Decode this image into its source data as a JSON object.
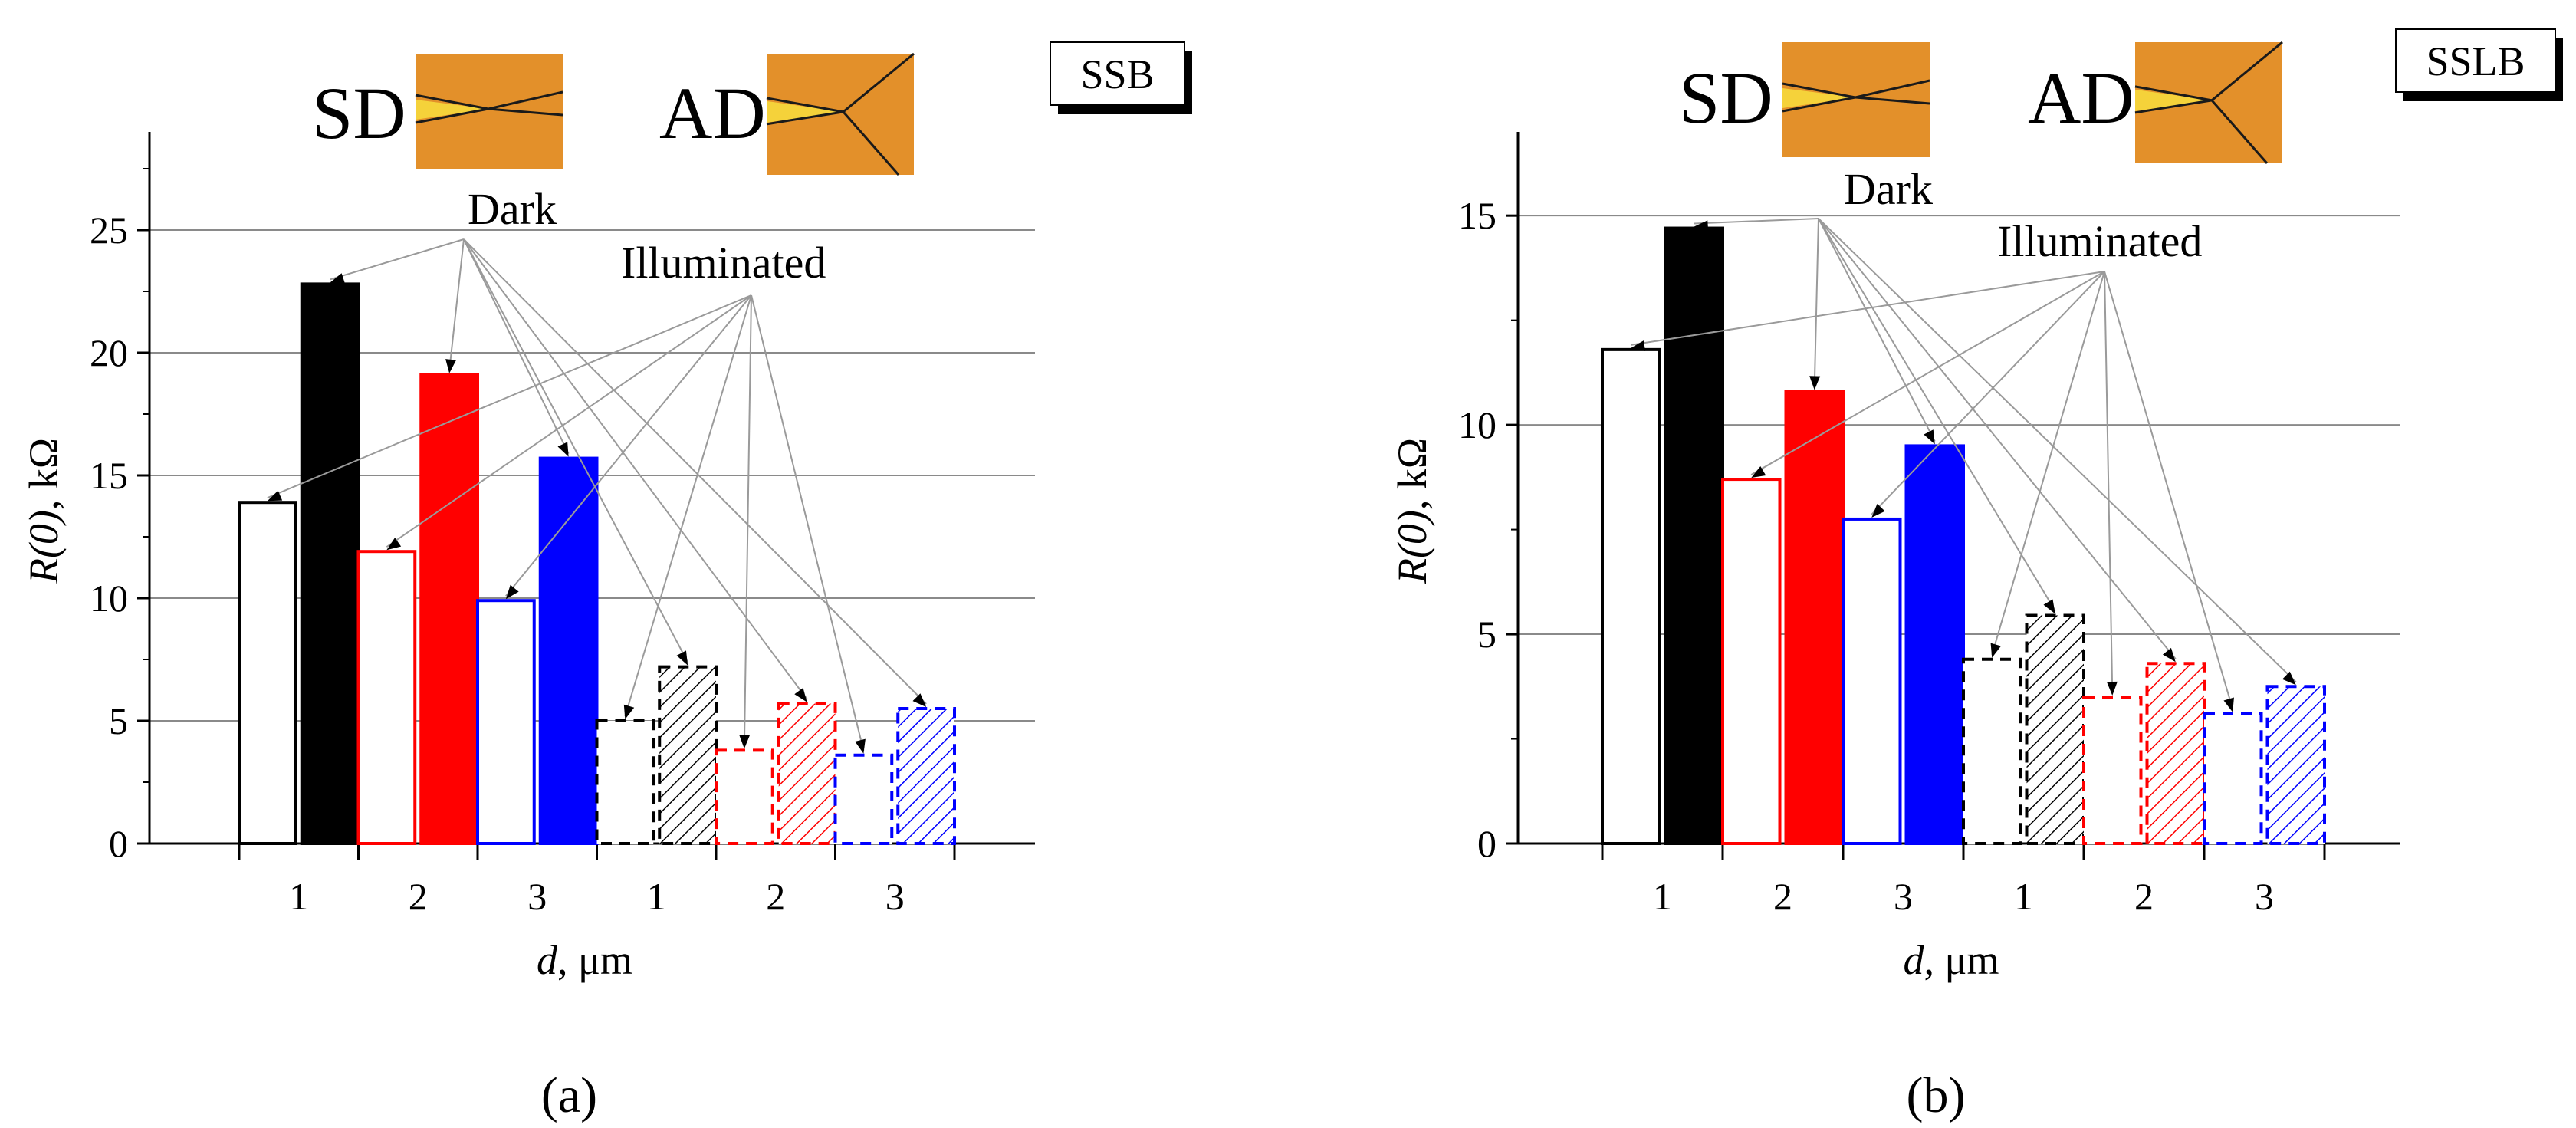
{
  "colors": {
    "black": "#000000",
    "red": "#ff0000",
    "blue": "#0000ff",
    "inset_bg": "#e3902a"
  },
  "labels": {
    "sd": "SD",
    "ad": "AD",
    "dark": "Dark",
    "illuminated": "Illuminated"
  },
  "chart_data": [
    {
      "type": "bar",
      "panel_label": "(a)",
      "box_label": "SSB",
      "xlabel_italic": "d",
      "xlabel_rest": ", μm",
      "ylabel_italic": "R(0)",
      "ylabel_rest": ", kΩ",
      "categories": [
        "1",
        "2",
        "3",
        "1",
        "2",
        "3"
      ],
      "ylim": [
        0,
        29
      ],
      "yticks": [
        0,
        5,
        10,
        15,
        20,
        25
      ],
      "grid": "horizontal",
      "groups": [
        {
          "d": "1",
          "contact": "SD",
          "color": "black",
          "illuminated": 13.9,
          "dark": 22.8
        },
        {
          "d": "2",
          "contact": "SD",
          "color": "red",
          "illuminated": 11.9,
          "dark": 19.1
        },
        {
          "d": "3",
          "contact": "SD",
          "color": "blue",
          "illuminated": 9.9,
          "dark": 15.7
        },
        {
          "d": "1",
          "contact": "AD",
          "color": "black",
          "illuminated": 5.0,
          "dark": 7.2
        },
        {
          "d": "2",
          "contact": "AD",
          "color": "red",
          "illuminated": 3.8,
          "dark": 5.7
        },
        {
          "d": "3",
          "contact": "AD",
          "color": "blue",
          "illuminated": 3.6,
          "dark": 5.5
        }
      ]
    },
    {
      "type": "bar",
      "panel_label": "(b)",
      "box_label": "SSLB",
      "xlabel_italic": "d",
      "xlabel_rest": ", μm",
      "ylabel_italic": "R(0)",
      "ylabel_rest": ", kΩ",
      "categories": [
        "1",
        "2",
        "3",
        "1",
        "2",
        "3"
      ],
      "ylim": [
        0,
        17
      ],
      "yticks": [
        0,
        5,
        10,
        15
      ],
      "grid": "horizontal",
      "groups": [
        {
          "d": "1",
          "contact": "SD",
          "color": "black",
          "illuminated": 11.8,
          "dark": 14.7
        },
        {
          "d": "2",
          "contact": "SD",
          "color": "red",
          "illuminated": 8.7,
          "dark": 10.8
        },
        {
          "d": "3",
          "contact": "SD",
          "color": "blue",
          "illuminated": 7.75,
          "dark": 9.5
        },
        {
          "d": "1",
          "contact": "AD",
          "color": "black",
          "illuminated": 4.4,
          "dark": 5.45
        },
        {
          "d": "2",
          "contact": "AD",
          "color": "red",
          "illuminated": 3.5,
          "dark": 4.3
        },
        {
          "d": "3",
          "contact": "AD",
          "color": "blue",
          "illuminated": 3.1,
          "dark": 3.75
        }
      ]
    }
  ]
}
